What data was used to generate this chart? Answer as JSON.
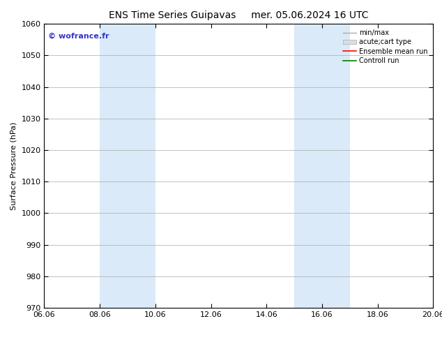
{
  "title_left": "ENS Time Series Guipavas",
  "title_right": "mer. 05.06.2024 16 UTC",
  "ylabel": "Surface Pressure (hPa)",
  "ylim": [
    970,
    1060
  ],
  "yticks": [
    970,
    980,
    990,
    1000,
    1010,
    1020,
    1030,
    1040,
    1050,
    1060
  ],
  "xlim_start": 6.06,
  "xlim_end": 20.06,
  "xticks": [
    6.06,
    8.06,
    10.06,
    12.06,
    14.06,
    16.06,
    18.06,
    20.06
  ],
  "xticklabels": [
    "06.06",
    "08.06",
    "10.06",
    "12.06",
    "14.06",
    "16.06",
    "18.06",
    "20.06"
  ],
  "shaded_bands": [
    {
      "x_start": 8.06,
      "x_end": 10.06
    },
    {
      "x_start": 15.06,
      "x_end": 17.06
    }
  ],
  "shaded_color": "#daeaf8",
  "watermark": "© wofrance.fr",
  "watermark_color": "#3333cc",
  "watermark_fontsize": 8,
  "bg_color": "#ffffff",
  "grid_color": "#aaaaaa",
  "title_fontsize": 10,
  "ylabel_fontsize": 8,
  "tick_fontsize": 8,
  "legend_items": [
    {
      "label": "min/max",
      "color": "#aaaaaa",
      "lw": 1
    },
    {
      "label": "acute;cart type",
      "color": "#cccccc",
      "lw": 6
    },
    {
      "label": "Ensemble mean run",
      "color": "#ff0000",
      "lw": 1
    },
    {
      "label": "Controll run",
      "color": "#008000",
      "lw": 1.5
    }
  ]
}
